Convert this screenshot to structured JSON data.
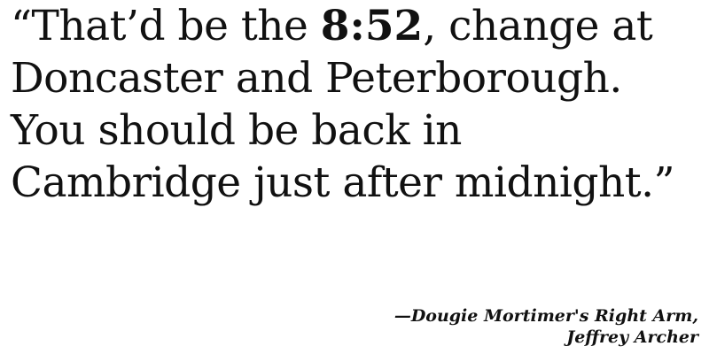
{
  "quote": {
    "line1_before": "“That’d be the ",
    "time": "8:52",
    "line1_after": ", change at",
    "line2": "Doncaster and Peterborough.",
    "line3": "You should be back in",
    "line4": "Cambridge just after midnight.”"
  },
  "attribution": {
    "source": "—Dougie Mortimer's Right Arm,",
    "author": "Jeffrey Archer"
  }
}
